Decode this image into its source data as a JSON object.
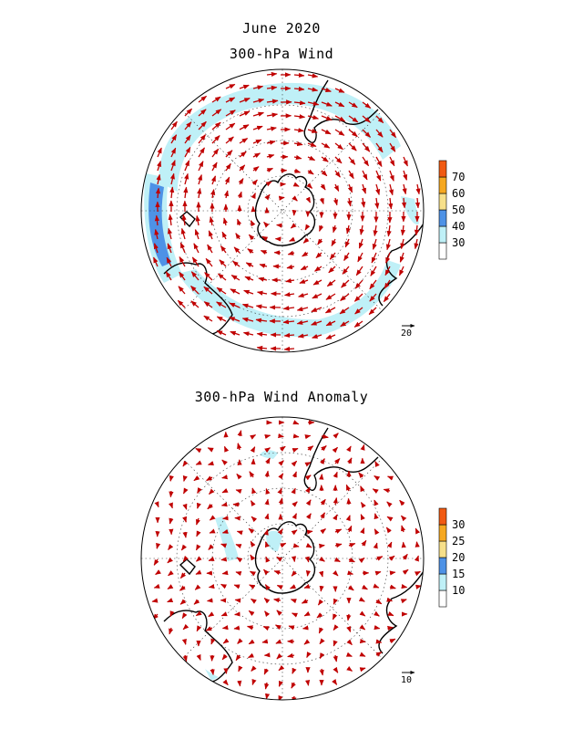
{
  "titles": {
    "month": "June 2020",
    "top_panel": "300-hPa Wind",
    "bottom_panel": "300-hPa Wind Anomaly"
  },
  "top_panel": {
    "reference_vector_label": "20",
    "colorbar": {
      "levels": [
        "30",
        "40",
        "50",
        "60",
        "70"
      ],
      "colors": [
        "#ffffff",
        "#bff0f7",
        "#4e92e6",
        "#f7e08a",
        "#f6a820",
        "#f15a12"
      ]
    }
  },
  "bottom_panel": {
    "reference_vector_label": "10",
    "colorbar": {
      "levels": [
        "10",
        "15",
        "20",
        "25",
        "30"
      ],
      "colors": [
        "#ffffff",
        "#bff0f7",
        "#4e92e6",
        "#f7e08a",
        "#f6a820",
        "#f15a12"
      ]
    }
  },
  "style": {
    "arrow_color": "#c00000",
    "coast_color": "#000000",
    "shade_light": "#bff0f7",
    "shade_dark": "#4e92e6"
  }
}
